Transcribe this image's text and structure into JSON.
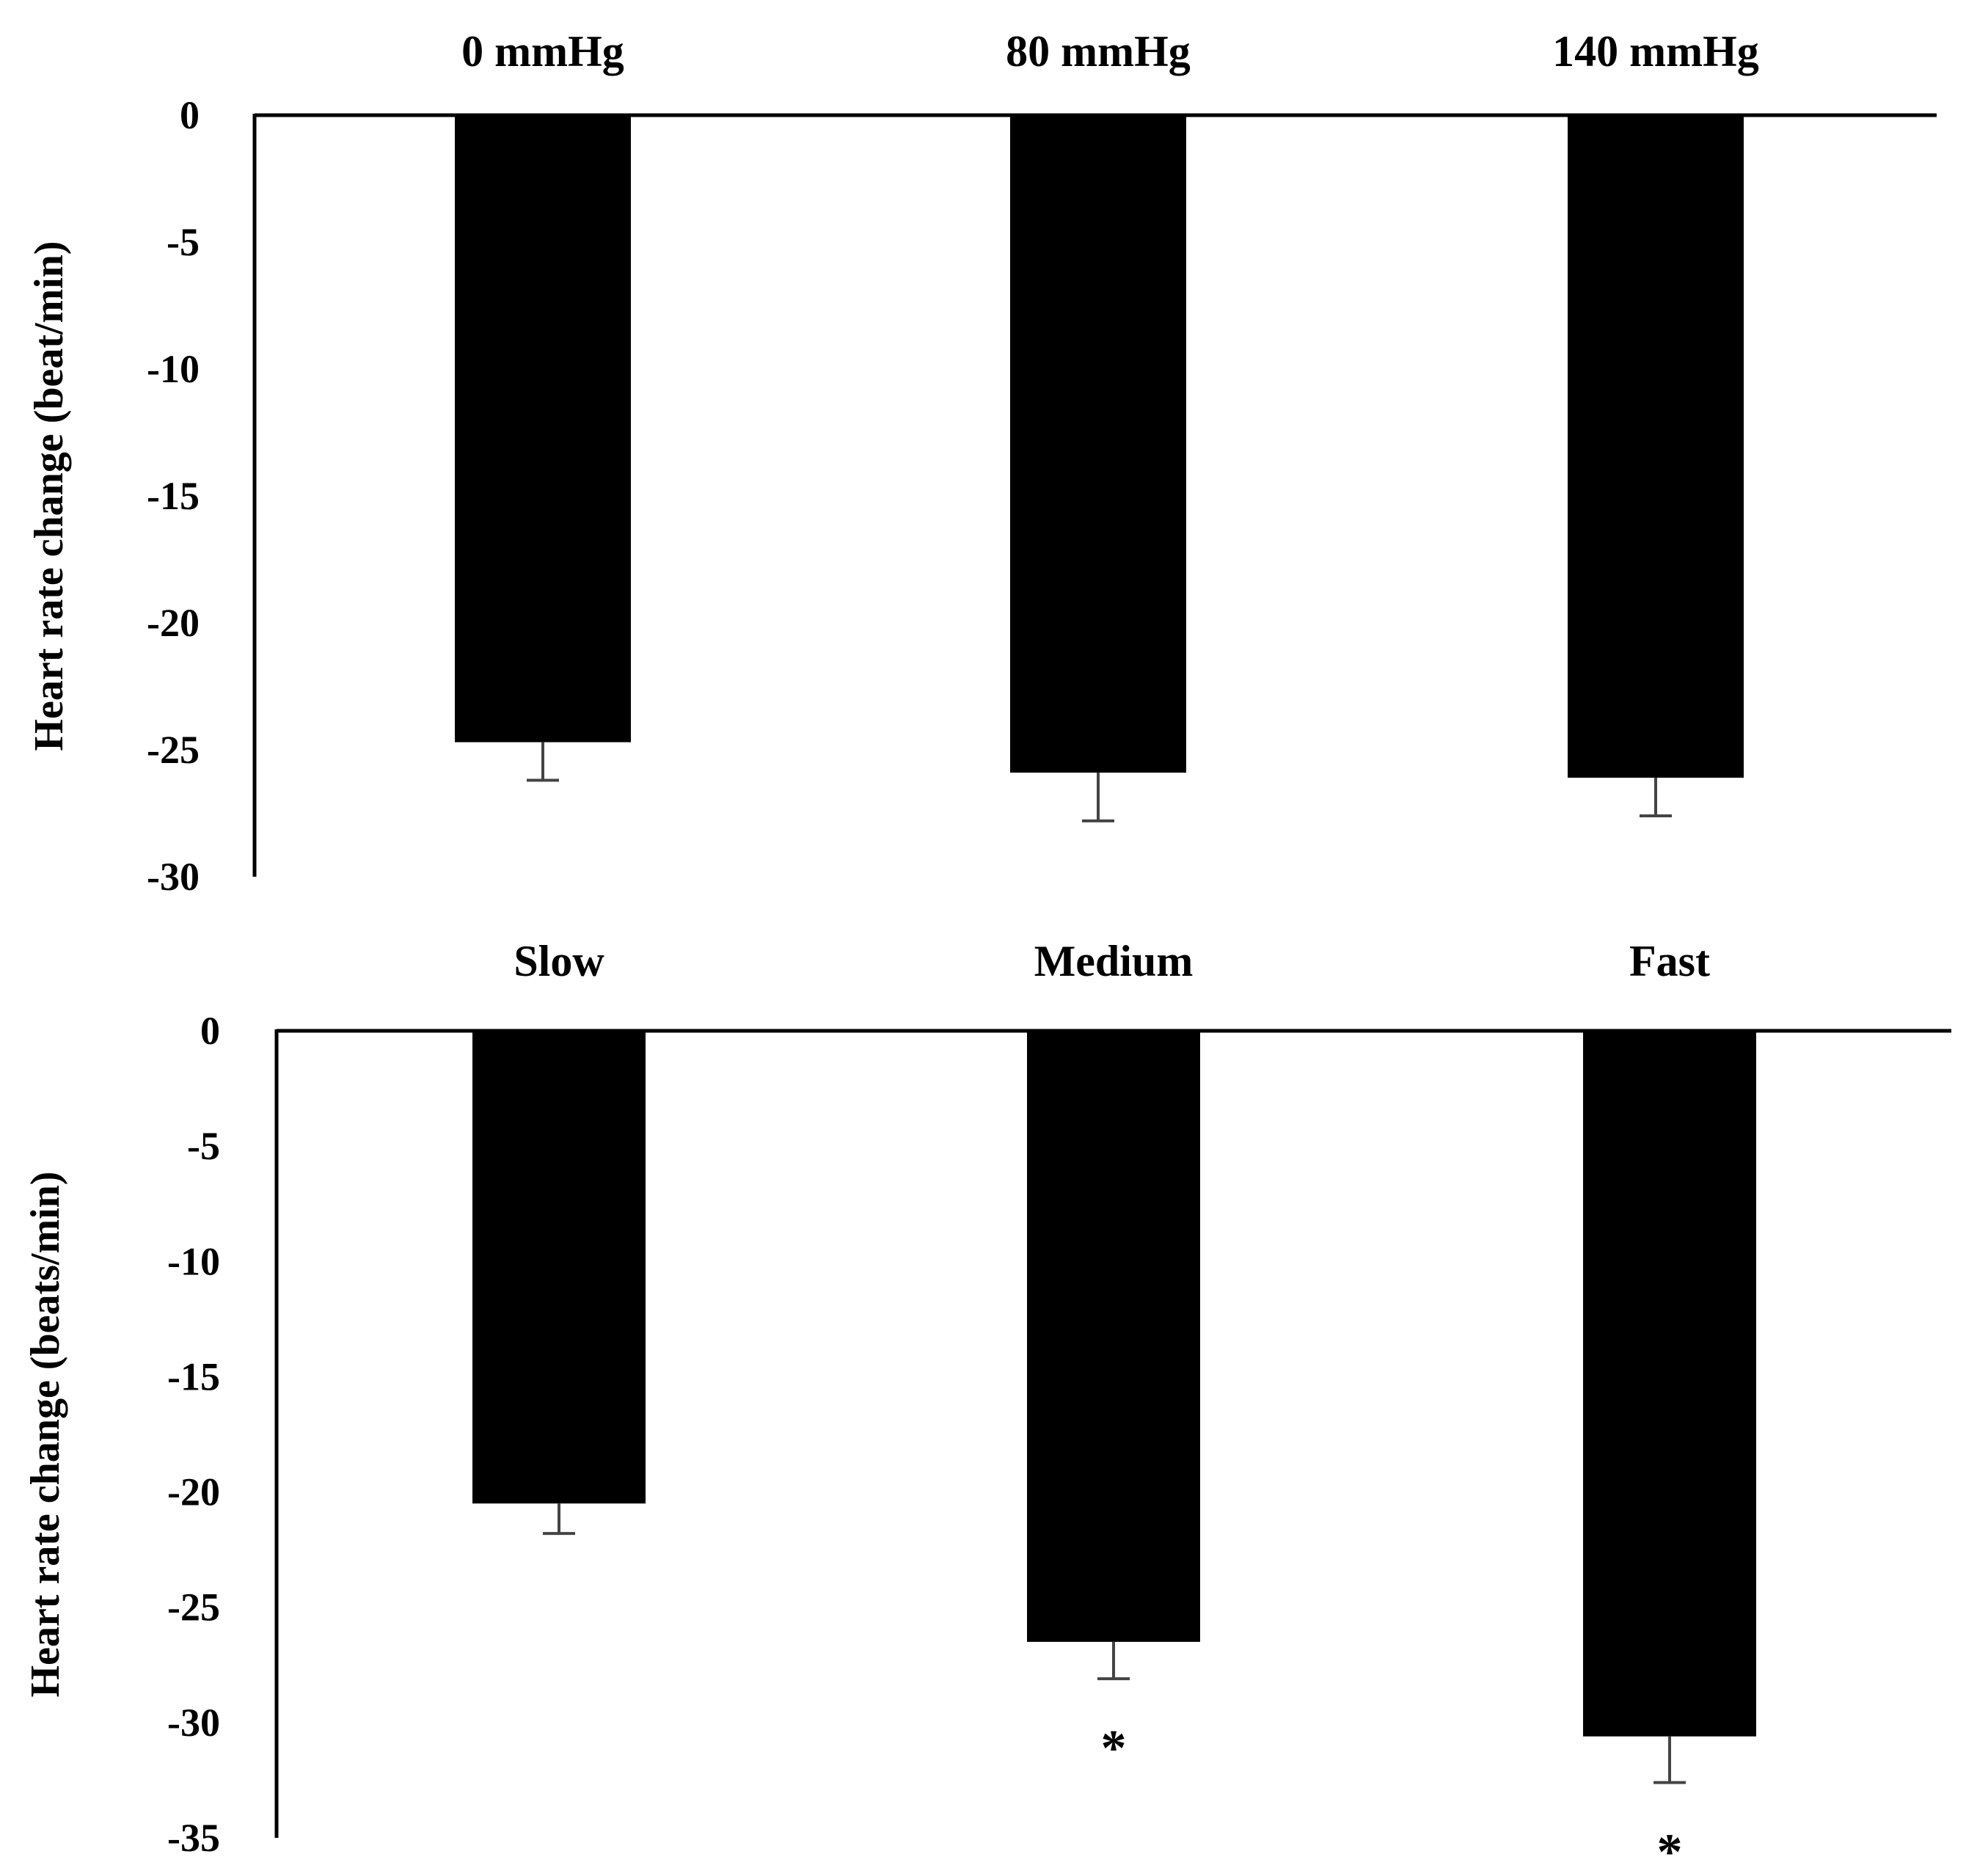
{
  "chart_data": [
    {
      "type": "bar",
      "title": "",
      "xlabel": "",
      "ylabel": "Heart rate change (beat/min)",
      "categories": [
        "0 mmHg",
        "80 mmHg",
        "140 mmHg"
      ],
      "values": [
        -24.7,
        -25.9,
        -26.1
      ],
      "error_bars": [
        1.5,
        1.9,
        1.5
      ],
      "significance": [
        "",
        "",
        ""
      ],
      "ylim": [
        -30,
        0
      ],
      "yticks": [
        0,
        -5,
        -10,
        -15,
        -20,
        -25,
        -30
      ],
      "ytick_labels": [
        "0",
        "-5",
        "-10",
        "-15",
        "-20",
        "-25",
        "-30"
      ],
      "category_labels_position": "top",
      "grid": false,
      "colors": {
        "bar": "#000000",
        "axis": "#000000",
        "error_bar": "#444444",
        "text": "#000000"
      }
    },
    {
      "type": "bar",
      "title": "",
      "xlabel": "",
      "ylabel": "Heart rate change (beats/min)",
      "categories": [
        "Slow",
        "Medium",
        "Fast"
      ],
      "values": [
        -20.5,
        -26.5,
        -30.6
      ],
      "error_bars": [
        1.3,
        1.6,
        2.0
      ],
      "significance": [
        "",
        "*",
        "*"
      ],
      "ylim": [
        -35,
        0
      ],
      "yticks": [
        0,
        -5,
        -10,
        -15,
        -20,
        -25,
        -30,
        -35
      ],
      "ytick_labels": [
        "0",
        "-5",
        "-10",
        "-15",
        "-20",
        "-25",
        "-30",
        "-35"
      ],
      "category_labels_position": "top",
      "grid": false,
      "colors": {
        "bar": "#000000",
        "axis": "#000000",
        "error_bar": "#444444",
        "text": "#000000"
      }
    }
  ]
}
